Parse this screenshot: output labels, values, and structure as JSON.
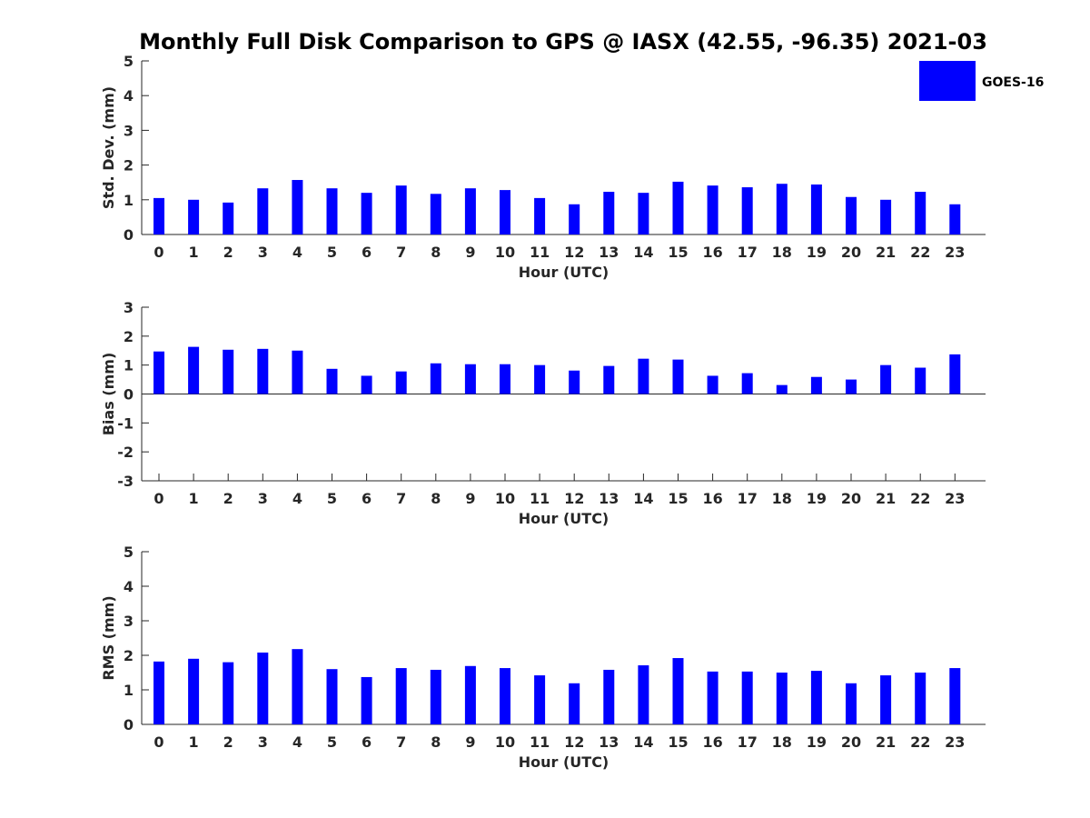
{
  "figure": {
    "title": "Monthly Full Disk Comparison to GPS @ IASX (42.55, -96.35) 2021-03",
    "bar_color": "#0000ff",
    "axis_color": "#262626"
  },
  "legend": {
    "label": "GOES-16",
    "placement": "top-right"
  },
  "chart_data": [
    {
      "type": "bar",
      "xlabel": "Hour (UTC)",
      "ylabel": "Std. Dev. (mm)",
      "categories": [
        "0",
        "1",
        "2",
        "3",
        "4",
        "5",
        "6",
        "7",
        "8",
        "9",
        "10",
        "11",
        "12",
        "13",
        "14",
        "15",
        "16",
        "17",
        "18",
        "19",
        "20",
        "21",
        "22",
        "23"
      ],
      "series": [
        {
          "name": "GOES-16",
          "values": [
            1.05,
            1.0,
            0.92,
            1.33,
            1.57,
            1.33,
            1.2,
            1.41,
            1.17,
            1.33,
            1.28,
            1.05,
            0.87,
            1.23,
            1.2,
            1.52,
            1.41,
            1.36,
            1.46,
            1.44,
            1.08,
            1.0,
            1.23,
            0.87
          ]
        }
      ],
      "ylim": [
        0,
        5
      ],
      "yticks": [
        0,
        1,
        2,
        3,
        4,
        5
      ],
      "ytick_labels": [
        "0",
        "1",
        "2",
        "3",
        "4",
        "5"
      ],
      "grid": false
    },
    {
      "type": "bar",
      "xlabel": "Hour (UTC)",
      "ylabel": "Bias (mm)",
      "categories": [
        "0",
        "1",
        "2",
        "3",
        "4",
        "5",
        "6",
        "7",
        "8",
        "9",
        "10",
        "11",
        "12",
        "13",
        "14",
        "15",
        "16",
        "17",
        "18",
        "19",
        "20",
        "21",
        "22",
        "23"
      ],
      "series": [
        {
          "name": "GOES-16",
          "values": [
            1.47,
            1.63,
            1.53,
            1.56,
            1.5,
            0.87,
            0.63,
            0.78,
            1.06,
            1.03,
            1.03,
            1.0,
            0.81,
            0.97,
            1.22,
            1.19,
            0.63,
            0.72,
            0.31,
            0.59,
            0.5,
            1.0,
            0.91,
            1.37
          ]
        }
      ],
      "ylim": [
        -3,
        3
      ],
      "yticks": [
        -3,
        -2,
        -1,
        0,
        1,
        2,
        3
      ],
      "ytick_labels": [
        "-3",
        "-2",
        "-1",
        "0",
        "1",
        "2",
        "3"
      ],
      "zero_line": true,
      "grid": false
    },
    {
      "type": "bar",
      "xlabel": "Hour (UTC)",
      "ylabel": "RMS (mm)",
      "categories": [
        "0",
        "1",
        "2",
        "3",
        "4",
        "5",
        "6",
        "7",
        "8",
        "9",
        "10",
        "11",
        "12",
        "13",
        "14",
        "15",
        "16",
        "17",
        "18",
        "19",
        "20",
        "21",
        "22",
        "23"
      ],
      "series": [
        {
          "name": "GOES-16",
          "values": [
            1.82,
            1.9,
            1.8,
            2.08,
            2.18,
            1.6,
            1.37,
            1.63,
            1.58,
            1.69,
            1.63,
            1.42,
            1.19,
            1.58,
            1.71,
            1.92,
            1.53,
            1.53,
            1.5,
            1.55,
            1.19,
            1.42,
            1.5,
            1.63
          ]
        }
      ],
      "ylim": [
        0,
        5
      ],
      "yticks": [
        0,
        1,
        2,
        3,
        4,
        5
      ],
      "ytick_labels": [
        "0",
        "1",
        "2",
        "3",
        "4",
        "5"
      ],
      "grid": false
    }
  ]
}
